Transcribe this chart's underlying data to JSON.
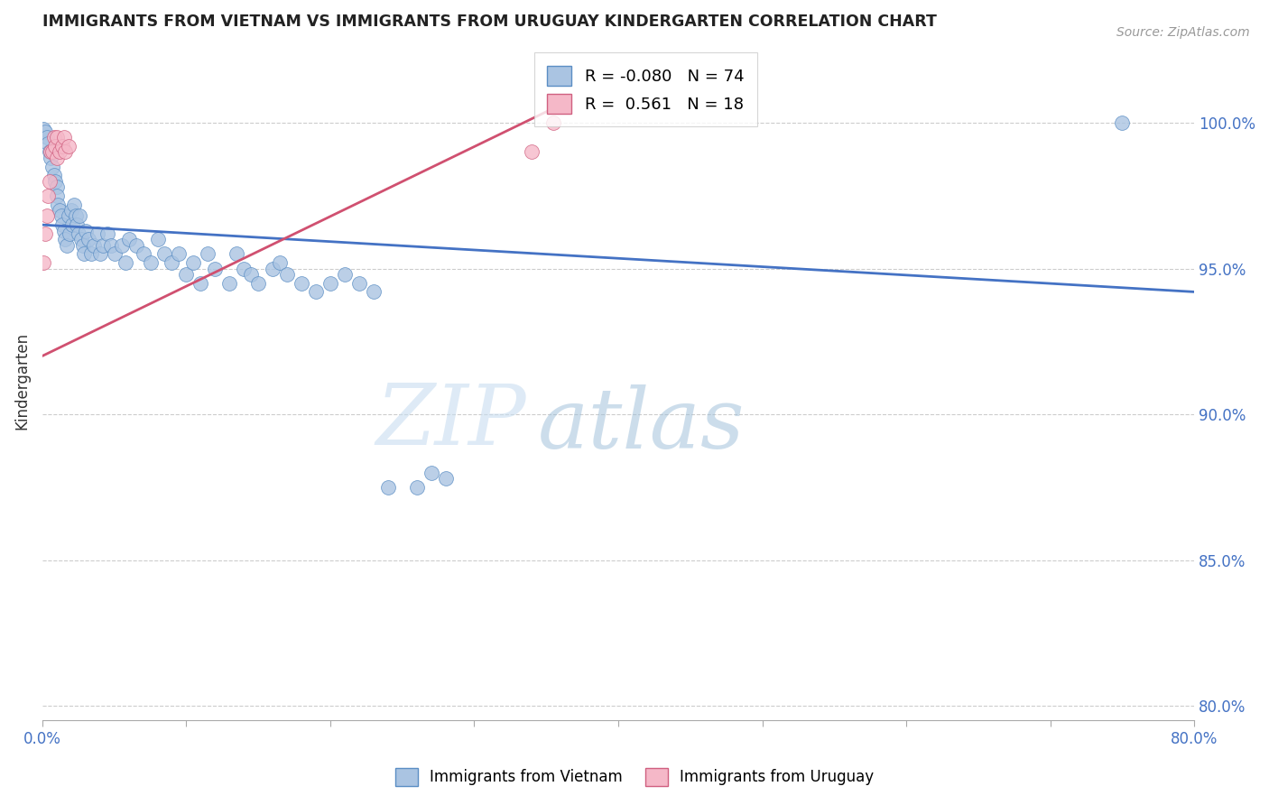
{
  "title": "IMMIGRANTS FROM VIETNAM VS IMMIGRANTS FROM URUGUAY KINDERGARTEN CORRELATION CHART",
  "source": "Source: ZipAtlas.com",
  "ylabel": "Kindergarten",
  "ylabel_right_ticks": [
    "100.0%",
    "95.0%",
    "90.0%",
    "85.0%",
    "80.0%"
  ],
  "ylabel_right_vals": [
    1.0,
    0.95,
    0.9,
    0.85,
    0.8
  ],
  "legend_blue_R": "-0.080",
  "legend_blue_N": "74",
  "legend_pink_R": "0.561",
  "legend_pink_N": "18",
  "blue_color": "#aac4e2",
  "blue_edge_color": "#5b8ec4",
  "pink_color": "#f5b8c8",
  "pink_edge_color": "#d06080",
  "blue_line_color": "#4472c4",
  "pink_line_color": "#d05070",
  "background_color": "#ffffff",
  "watermark_zip": "ZIP",
  "watermark_atlas": "atlas",
  "xmin": 0.0,
  "xmax": 0.8,
  "ymin": 0.795,
  "ymax": 1.028,
  "blue_line_x0": 0.0,
  "blue_line_x1": 0.8,
  "blue_line_y0": 0.965,
  "blue_line_y1": 0.942,
  "pink_line_x0": 0.0,
  "pink_line_x1": 0.355,
  "pink_line_y0": 0.92,
  "pink_line_y1": 1.005,
  "vietnam_x": [
    0.001,
    0.002,
    0.003,
    0.004,
    0.005,
    0.006,
    0.007,
    0.008,
    0.009,
    0.01,
    0.01,
    0.011,
    0.012,
    0.013,
    0.014,
    0.015,
    0.016,
    0.017,
    0.018,
    0.019,
    0.02,
    0.021,
    0.022,
    0.023,
    0.024,
    0.025,
    0.026,
    0.027,
    0.028,
    0.029,
    0.03,
    0.032,
    0.034,
    0.036,
    0.038,
    0.04,
    0.042,
    0.045,
    0.048,
    0.05,
    0.055,
    0.058,
    0.06,
    0.065,
    0.07,
    0.075,
    0.08,
    0.085,
    0.09,
    0.095,
    0.1,
    0.105,
    0.11,
    0.115,
    0.12,
    0.13,
    0.135,
    0.14,
    0.145,
    0.15,
    0.16,
    0.165,
    0.17,
    0.18,
    0.19,
    0.2,
    0.21,
    0.22,
    0.23,
    0.24,
    0.26,
    0.27,
    0.28,
    0.75
  ],
  "vietnam_y": [
    0.998,
    0.997,
    0.995,
    0.993,
    0.99,
    0.988,
    0.985,
    0.982,
    0.98,
    0.978,
    0.975,
    0.972,
    0.97,
    0.968,
    0.965,
    0.963,
    0.96,
    0.958,
    0.968,
    0.962,
    0.97,
    0.965,
    0.972,
    0.968,
    0.965,
    0.962,
    0.968,
    0.96,
    0.958,
    0.955,
    0.963,
    0.96,
    0.955,
    0.958,
    0.962,
    0.955,
    0.958,
    0.962,
    0.958,
    0.955,
    0.958,
    0.952,
    0.96,
    0.958,
    0.955,
    0.952,
    0.96,
    0.955,
    0.952,
    0.955,
    0.948,
    0.952,
    0.945,
    0.955,
    0.95,
    0.945,
    0.955,
    0.95,
    0.948,
    0.945,
    0.95,
    0.952,
    0.948,
    0.945,
    0.942,
    0.945,
    0.948,
    0.945,
    0.942,
    0.875,
    0.875,
    0.88,
    0.878,
    1.0
  ],
  "uruguay_x": [
    0.001,
    0.002,
    0.003,
    0.004,
    0.005,
    0.006,
    0.007,
    0.008,
    0.009,
    0.01,
    0.01,
    0.012,
    0.014,
    0.015,
    0.016,
    0.018,
    0.34,
    0.355
  ],
  "uruguay_y": [
    0.952,
    0.962,
    0.968,
    0.975,
    0.98,
    0.99,
    0.99,
    0.995,
    0.992,
    0.995,
    0.988,
    0.99,
    0.992,
    0.995,
    0.99,
    0.992,
    0.99,
    1.0
  ]
}
